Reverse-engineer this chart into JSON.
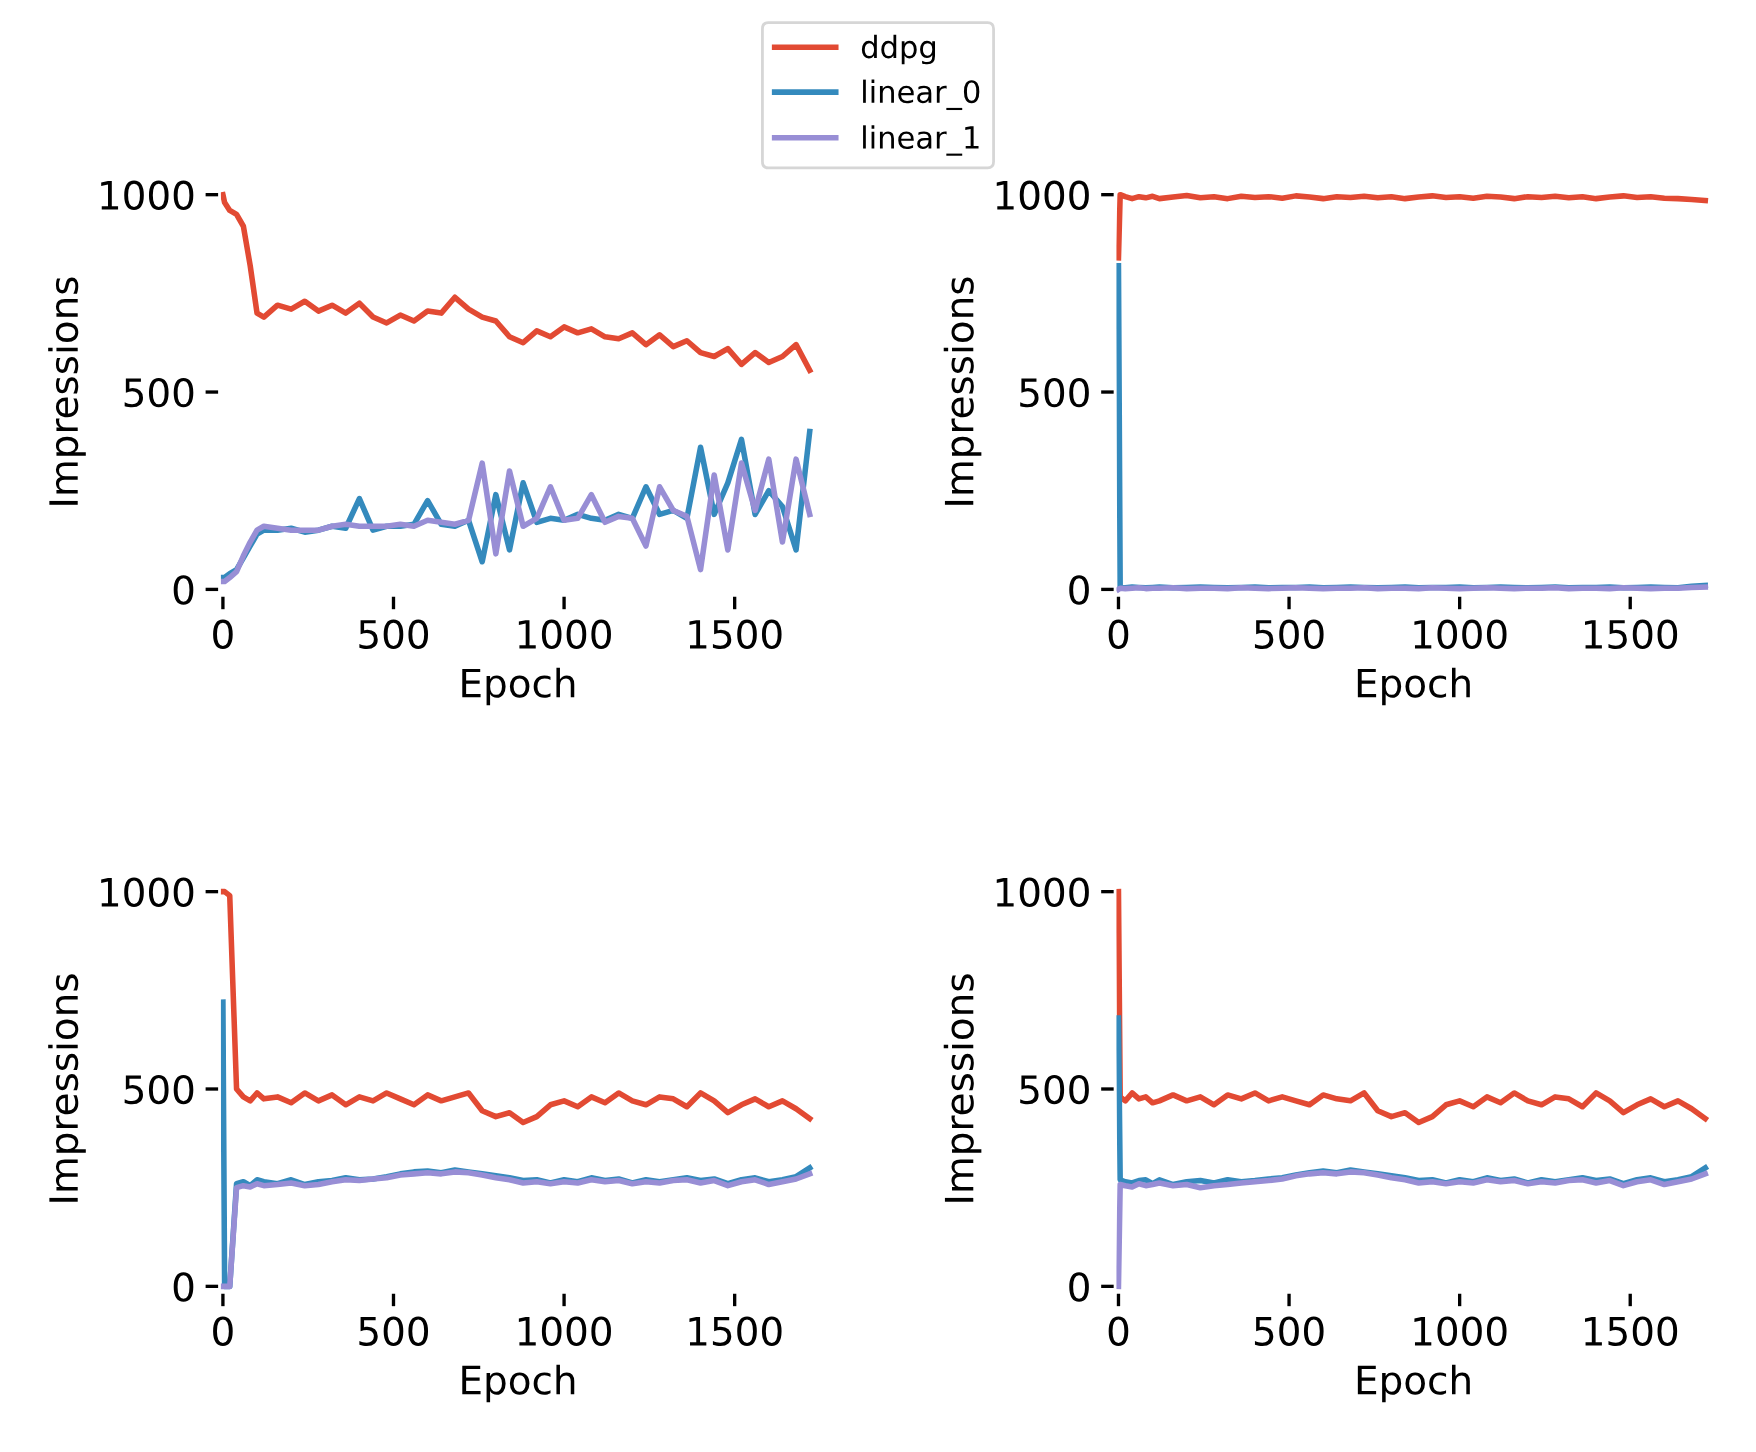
{
  "chart_data": [
    {
      "type": "line",
      "xlabel": "Epoch",
      "ylabel": "Impressions",
      "xlim": [
        -10,
        1740
      ],
      "ylim": [
        -15,
        1015
      ],
      "xticks": [
        0,
        500,
        1000,
        1500
      ],
      "yticks": [
        0,
        500,
        1000
      ],
      "grid": false,
      "legend": "top",
      "line_style": "solid",
      "x": [
        0,
        5,
        20,
        40,
        60,
        80,
        100,
        120,
        160,
        200,
        240,
        280,
        320,
        360,
        400,
        440,
        480,
        520,
        560,
        600,
        640,
        680,
        720,
        760,
        800,
        840,
        880,
        920,
        960,
        1000,
        1040,
        1080,
        1120,
        1160,
        1200,
        1240,
        1280,
        1320,
        1360,
        1400,
        1440,
        1480,
        1520,
        1560,
        1600,
        1640,
        1680,
        1720
      ],
      "series": [
        {
          "name": "ddpg",
          "color": "#e24a33",
          "values": [
            1000,
            980,
            960,
            950,
            920,
            820,
            700,
            690,
            720,
            710,
            730,
            705,
            720,
            700,
            725,
            690,
            675,
            695,
            680,
            705,
            700,
            740,
            710,
            690,
            680,
            640,
            625,
            655,
            640,
            665,
            650,
            660,
            640,
            635,
            650,
            620,
            645,
            615,
            630,
            600,
            590,
            610,
            570,
            600,
            575,
            590,
            620,
            555
          ]
        },
        {
          "name": "linear_0",
          "color": "#348abd",
          "values": [
            30,
            30,
            40,
            50,
            80,
            110,
            140,
            150,
            150,
            155,
            145,
            150,
            160,
            155,
            230,
            150,
            160,
            160,
            165,
            225,
            165,
            160,
            175,
            70,
            240,
            100,
            270,
            170,
            180,
            175,
            190,
            180,
            175,
            190,
            180,
            260,
            190,
            200,
            180,
            360,
            190,
            270,
            380,
            190,
            250,
            210,
            100,
            400
          ]
        },
        {
          "name": "linear_1",
          "color": "#988ed5",
          "values": [
            20,
            20,
            30,
            45,
            85,
            120,
            150,
            160,
            155,
            150,
            150,
            150,
            160,
            165,
            160,
            160,
            160,
            165,
            160,
            175,
            170,
            165,
            175,
            320,
            90,
            300,
            160,
            180,
            260,
            175,
            180,
            240,
            170,
            185,
            180,
            110,
            260,
            200,
            185,
            50,
            290,
            100,
            320,
            200,
            330,
            120,
            330,
            190
          ]
        }
      ]
    },
    {
      "type": "line",
      "xlabel": "Epoch",
      "ylabel": "Impressions",
      "xlim": [
        -10,
        1740
      ],
      "ylim": [
        -15,
        1015
      ],
      "xticks": [
        0,
        500,
        1000,
        1500
      ],
      "yticks": [
        0,
        500,
        1000
      ],
      "grid": false,
      "line_style": "solid",
      "x": [
        0,
        5,
        20,
        40,
        60,
        80,
        100,
        120,
        160,
        200,
        240,
        280,
        320,
        360,
        400,
        440,
        480,
        520,
        560,
        600,
        640,
        680,
        720,
        760,
        800,
        840,
        880,
        920,
        960,
        1000,
        1040,
        1080,
        1120,
        1160,
        1200,
        1240,
        1280,
        1320,
        1360,
        1400,
        1440,
        1480,
        1520,
        1560,
        1600,
        1640,
        1680,
        1720
      ],
      "series": [
        {
          "color": "#e24a33",
          "values": [
            840,
            1000,
            995,
            990,
            995,
            992,
            996,
            990,
            994,
            998,
            992,
            995,
            990,
            996,
            993,
            995,
            991,
            997,
            994,
            990,
            995,
            993,
            996,
            992,
            995,
            990,
            994,
            997,
            993,
            995,
            991,
            996,
            994,
            990,
            995,
            993,
            996,
            992,
            995,
            990,
            994,
            997,
            993,
            995,
            991,
            990,
            988,
            985
          ]
        },
        {
          "color": "#348abd",
          "values": [
            820,
            5,
            4,
            6,
            5,
            4,
            5,
            6,
            4,
            5,
            6,
            5,
            4,
            5,
            6,
            4,
            5,
            5,
            6,
            4,
            5,
            6,
            5,
            4,
            5,
            6,
            4,
            5,
            5,
            6,
            4,
            5,
            6,
            5,
            4,
            5,
            6,
            4,
            5,
            5,
            6,
            4,
            5,
            6,
            5,
            4,
            8,
            10
          ]
        },
        {
          "color": "#988ed5",
          "values": [
            0,
            3,
            2,
            3,
            4,
            2,
            3,
            3,
            4,
            2,
            3,
            3,
            2,
            4,
            3,
            2,
            3,
            4,
            3,
            2,
            3,
            3,
            4,
            2,
            3,
            3,
            2,
            4,
            3,
            2,
            3,
            4,
            3,
            2,
            3,
            3,
            4,
            2,
            3,
            3,
            2,
            4,
            3,
            2,
            3,
            3,
            5,
            6
          ]
        }
      ]
    },
    {
      "type": "line",
      "xlabel": "Epoch",
      "ylabel": "Impressions",
      "xlim": [
        -10,
        1740
      ],
      "ylim": [
        -15,
        1015
      ],
      "xticks": [
        0,
        500,
        1000,
        1500
      ],
      "yticks": [
        0,
        500,
        1000
      ],
      "grid": false,
      "line_style": "solid",
      "x": [
        0,
        5,
        20,
        40,
        60,
        80,
        100,
        120,
        160,
        200,
        240,
        280,
        320,
        360,
        400,
        440,
        480,
        520,
        560,
        600,
        640,
        680,
        720,
        760,
        800,
        840,
        880,
        920,
        960,
        1000,
        1040,
        1080,
        1120,
        1160,
        1200,
        1240,
        1280,
        1320,
        1360,
        1400,
        1440,
        1480,
        1520,
        1560,
        1600,
        1640,
        1680,
        1720
      ],
      "series": [
        {
          "color": "#e24a33",
          "values": [
            1000,
            1000,
            990,
            500,
            480,
            470,
            490,
            475,
            480,
            465,
            490,
            470,
            485,
            460,
            480,
            470,
            490,
            475,
            460,
            485,
            470,
            480,
            490,
            445,
            430,
            440,
            415,
            430,
            460,
            470,
            455,
            480,
            465,
            490,
            470,
            460,
            480,
            475,
            455,
            490,
            470,
            440,
            460,
            475,
            455,
            470,
            450,
            425
          ]
        },
        {
          "color": "#348abd",
          "values": [
            720,
            0,
            0,
            260,
            265,
            255,
            270,
            265,
            260,
            270,
            258,
            265,
            268,
            275,
            270,
            272,
            278,
            285,
            290,
            292,
            288,
            295,
            290,
            285,
            280,
            275,
            268,
            270,
            262,
            270,
            265,
            275,
            268,
            272,
            262,
            270,
            265,
            270,
            275,
            268,
            272,
            260,
            270,
            275,
            265,
            270,
            278,
            300
          ]
        },
        {
          "color": "#988ed5",
          "values": [
            0,
            0,
            0,
            250,
            255,
            252,
            260,
            255,
            258,
            262,
            255,
            258,
            265,
            270,
            268,
            272,
            275,
            282,
            285,
            288,
            285,
            290,
            288,
            282,
            275,
            270,
            262,
            265,
            260,
            265,
            262,
            270,
            265,
            268,
            260,
            265,
            262,
            268,
            270,
            262,
            268,
            255,
            265,
            270,
            258,
            265,
            272,
            285
          ]
        }
      ]
    },
    {
      "type": "line",
      "xlabel": "Epoch",
      "ylabel": "Impressions",
      "xlim": [
        -10,
        1740
      ],
      "ylim": [
        -15,
        1015
      ],
      "xticks": [
        0,
        500,
        1000,
        1500
      ],
      "yticks": [
        0,
        500,
        1000
      ],
      "grid": false,
      "line_style": "solid",
      "x": [
        0,
        5,
        20,
        40,
        60,
        80,
        100,
        120,
        160,
        200,
        240,
        280,
        320,
        360,
        400,
        440,
        480,
        520,
        560,
        600,
        640,
        680,
        720,
        760,
        800,
        840,
        880,
        920,
        960,
        1000,
        1040,
        1080,
        1120,
        1160,
        1200,
        1240,
        1280,
        1320,
        1360,
        1400,
        1440,
        1480,
        1520,
        1560,
        1600,
        1640,
        1680,
        1720
      ],
      "series": [
        {
          "color": "#e24a33",
          "values": [
            1000,
            480,
            470,
            490,
            475,
            480,
            465,
            470,
            485,
            470,
            480,
            460,
            485,
            475,
            490,
            470,
            480,
            470,
            460,
            485,
            475,
            470,
            490,
            445,
            430,
            440,
            415,
            430,
            460,
            470,
            455,
            480,
            465,
            490,
            470,
            460,
            480,
            475,
            455,
            490,
            470,
            440,
            460,
            475,
            455,
            470,
            450,
            425
          ]
        },
        {
          "color": "#348abd",
          "values": [
            680,
            270,
            265,
            262,
            268,
            270,
            260,
            270,
            258,
            265,
            268,
            262,
            270,
            265,
            268,
            272,
            275,
            282,
            288,
            292,
            288,
            295,
            290,
            285,
            280,
            275,
            268,
            270,
            262,
            270,
            265,
            275,
            268,
            272,
            262,
            270,
            265,
            270,
            275,
            268,
            272,
            260,
            270,
            275,
            265,
            270,
            278,
            300
          ]
        },
        {
          "color": "#988ed5",
          "values": [
            0,
            258,
            255,
            252,
            260,
            255,
            258,
            262,
            255,
            258,
            250,
            255,
            258,
            262,
            265,
            268,
            272,
            280,
            285,
            288,
            285,
            290,
            288,
            282,
            275,
            270,
            262,
            265,
            260,
            265,
            262,
            270,
            265,
            268,
            260,
            265,
            262,
            268,
            270,
            262,
            268,
            255,
            265,
            270,
            258,
            265,
            272,
            285
          ]
        }
      ]
    }
  ]
}
